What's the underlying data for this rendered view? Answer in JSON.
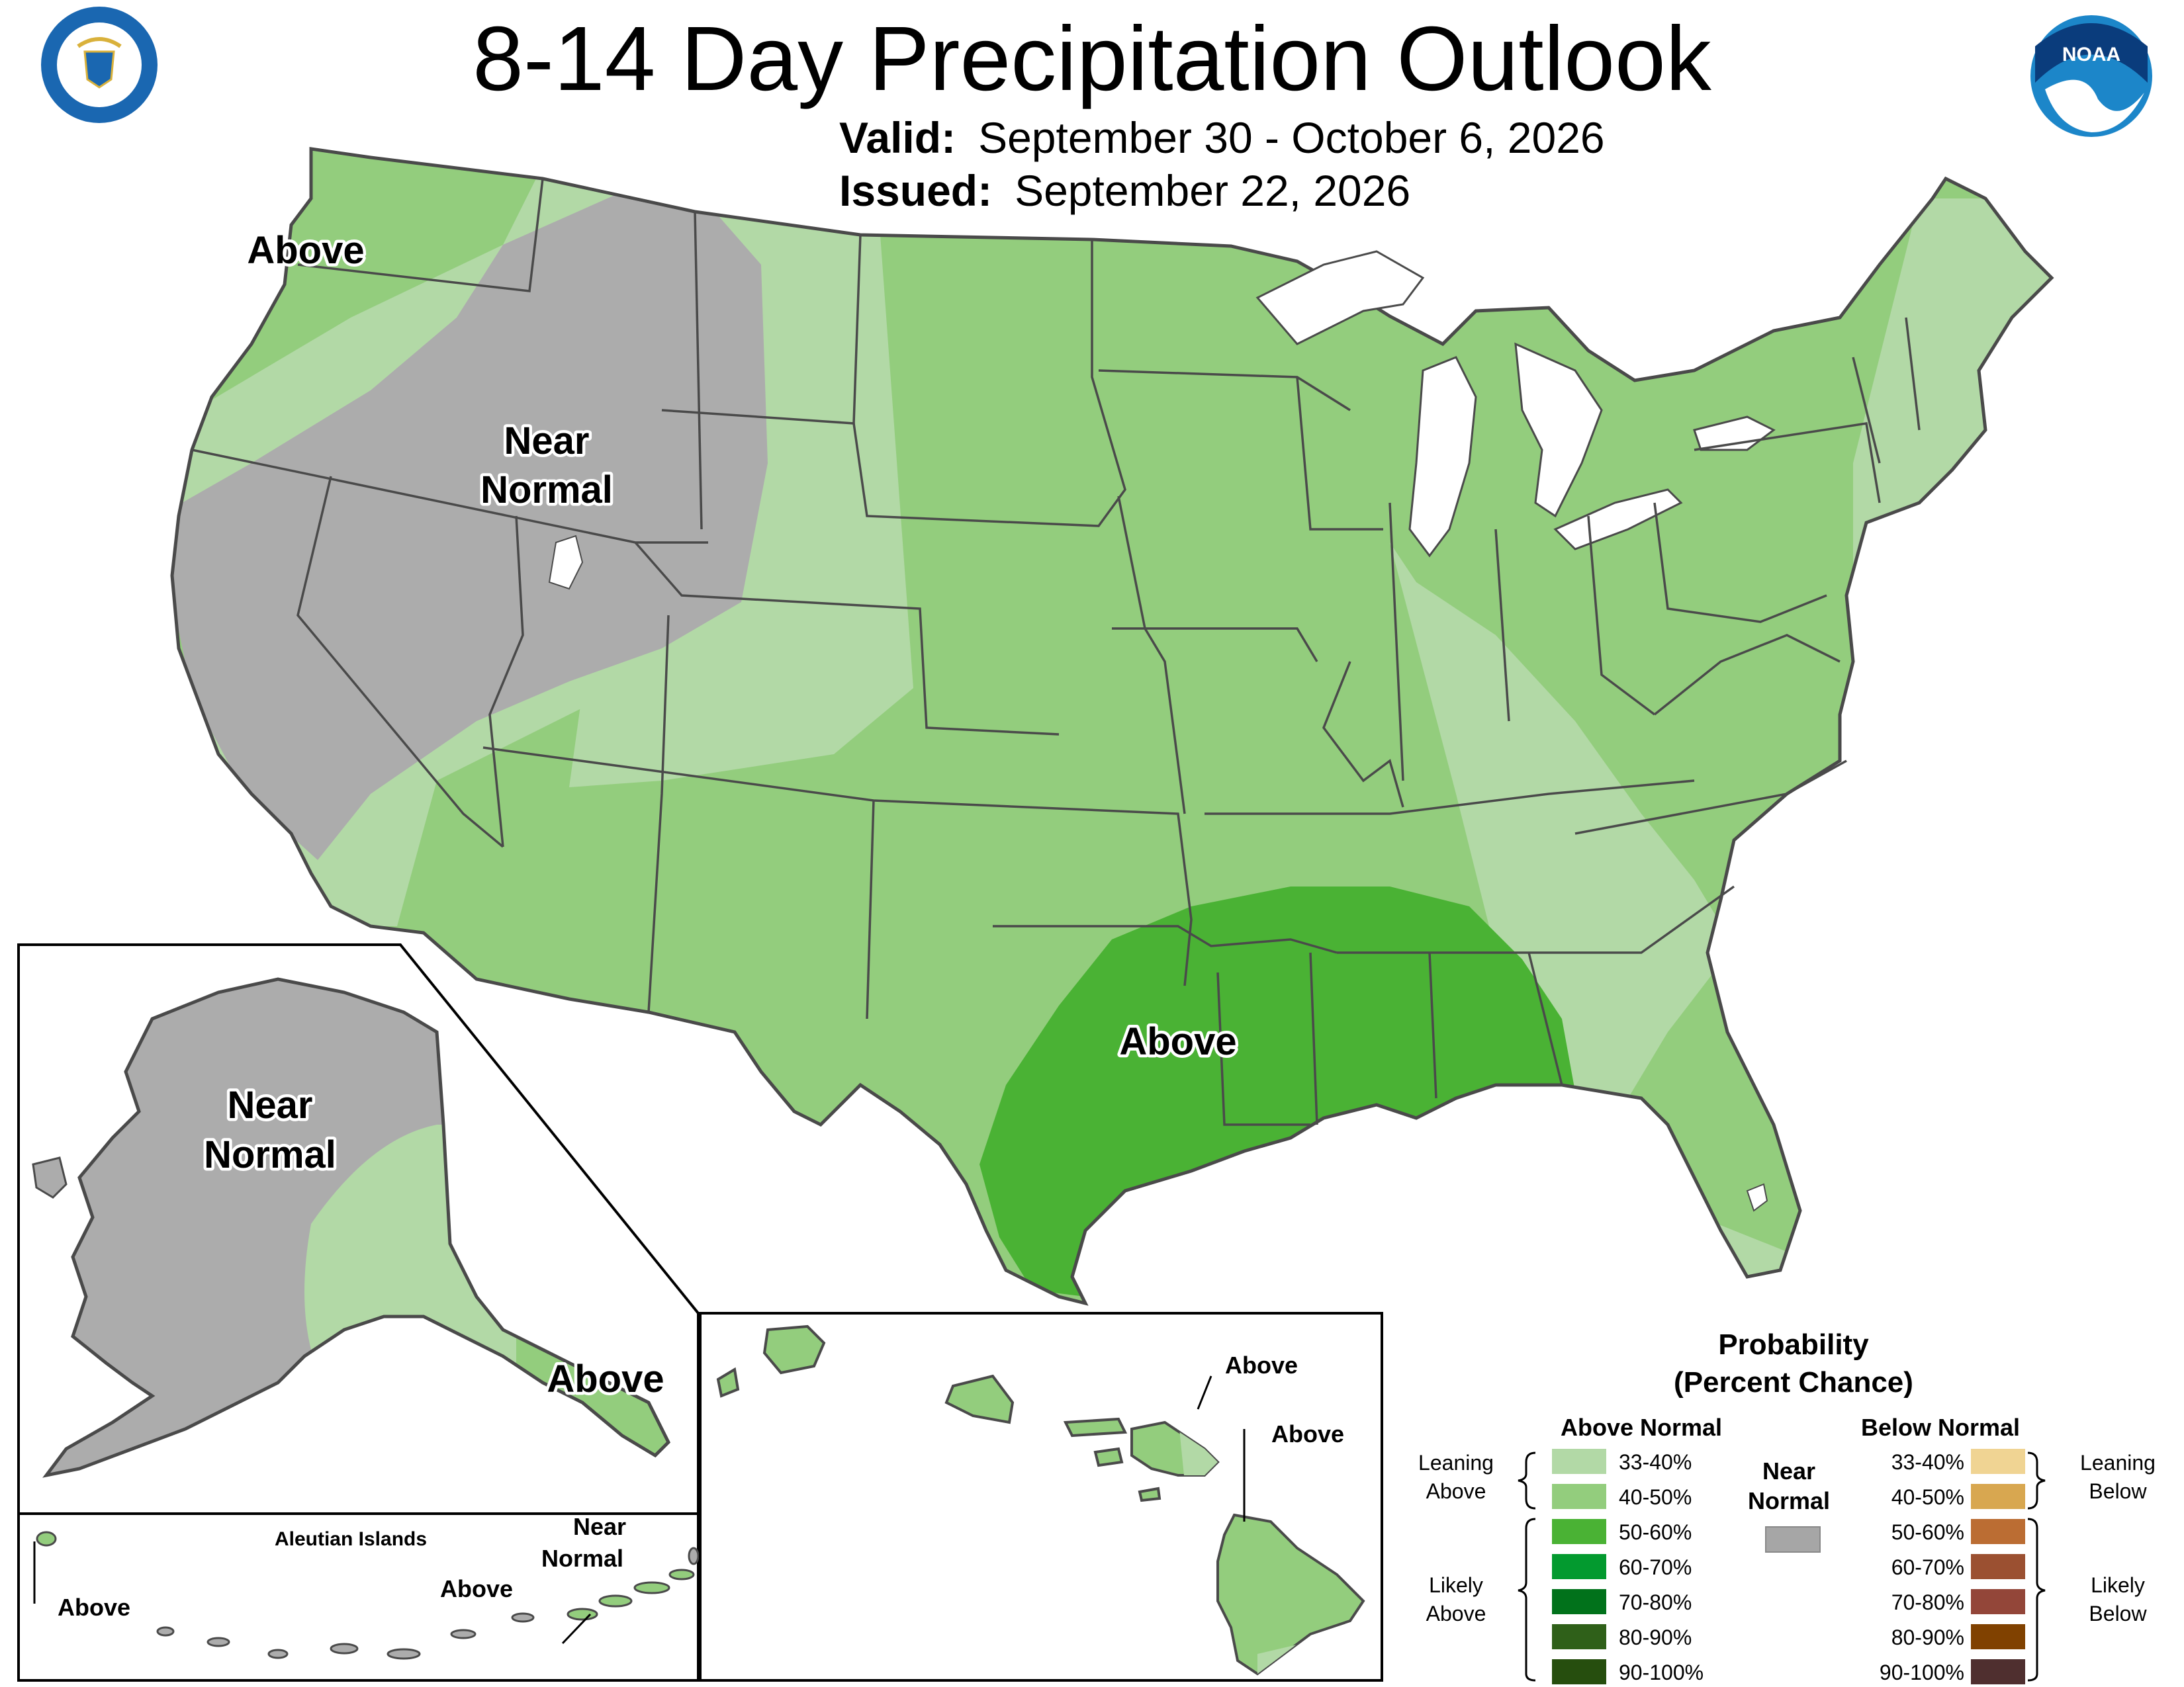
{
  "header": {
    "title": "8-14 Day Precipitation Outlook",
    "valid_label": "Valid:",
    "valid_value": "September 30 - October 6, 2026",
    "issued_label": "Issued:",
    "issued_value": "September 22, 2026"
  },
  "logos": {
    "left": "DEPARTMENT OF COMMERCE · UNITED STATES OF AMERICA",
    "right": "NOAA"
  },
  "map": {
    "conus_labels": {
      "nw_above": "Above",
      "near_normal_1": "Near",
      "near_normal_2": "Normal",
      "south_above": "Above"
    },
    "alaska_labels": {
      "near_1": "Near",
      "near_2": "Normal",
      "above": "Above"
    },
    "aleutian": {
      "title": "Aleutian Islands",
      "above_left": "Above",
      "above_right": "Above",
      "near_1": "Near",
      "near_2": "Normal"
    },
    "hawaii": {
      "above_1": "Above",
      "above_2": "Above"
    }
  },
  "legend": {
    "title_1": "Probability",
    "title_2": "(Percent Chance)",
    "above_header": "Above Normal",
    "below_header": "Below Normal",
    "near_1": "Near",
    "near_2": "Normal",
    "leaning_above_1": "Leaning",
    "leaning_above_2": "Above",
    "likely_above_1": "Likely",
    "likely_above_2": "Above",
    "leaning_below_1": "Leaning",
    "leaning_below_2": "Below",
    "likely_below_1": "Likely",
    "likely_below_2": "Below",
    "above_items": [
      {
        "label": "33-40%",
        "color": "#b2d9a6"
      },
      {
        "label": "40-50%",
        "color": "#93cd7d"
      },
      {
        "label": "50-60%",
        "color": "#4ab234"
      },
      {
        "label": "60-70%",
        "color": "#039a2f"
      },
      {
        "label": "70-80%",
        "color": "#01721b"
      },
      {
        "label": "80-90%",
        "color": "#2f6019"
      },
      {
        "label": "90-100%",
        "color": "#264e0e"
      }
    ],
    "below_items": [
      {
        "label": "33-40%",
        "color": "#f0d493"
      },
      {
        "label": "40-50%",
        "color": "#d8a750"
      },
      {
        "label": "50-60%",
        "color": "#bb6d33"
      },
      {
        "label": "60-70%",
        "color": "#9b5031"
      },
      {
        "label": "70-80%",
        "color": "#934639"
      },
      {
        "label": "80-90%",
        "color": "#804100"
      },
      {
        "label": "90-100%",
        "color": "#4f2f2f"
      }
    ],
    "near_color": "#a6a6a6"
  },
  "colors": {
    "near_normal": "#acacac",
    "above_33_40": "#b2d9a6",
    "above_40_50": "#93cd7d",
    "above_50_60": "#4ab234",
    "border": "#4a4a4a"
  }
}
